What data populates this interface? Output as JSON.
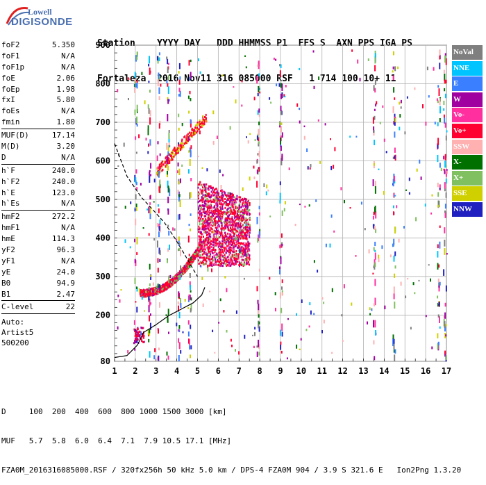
{
  "logo": {
    "line1": "Lowell",
    "line2": "DIGISONDE"
  },
  "header": {
    "labels": "Station    YYYY DAY   DDD HHMMSS P1  FFS S  AXN PPS IGA PS",
    "values": "Fortaleza  2016 Nov11 316 085000 RSF   1 714 100 10+ 11"
  },
  "params": {
    "group1": [
      [
        "foF2",
        "5.350"
      ],
      [
        "foF1",
        "N/A"
      ],
      [
        "foF1p",
        "N/A"
      ],
      [
        "foE",
        "2.06"
      ],
      [
        "foEp",
        "1.98"
      ],
      [
        "fxI",
        "5.80"
      ],
      [
        "foEs",
        "N/A"
      ],
      [
        "fmin",
        "1.80"
      ]
    ],
    "group2": [
      [
        "MUF(D)",
        "17.14"
      ],
      [
        "M(D)",
        "3.20"
      ],
      [
        "D",
        "N/A"
      ]
    ],
    "group3": [
      [
        "h`F",
        "240.0"
      ],
      [
        "h`F2",
        "240.0"
      ],
      [
        "h`E",
        "123.0"
      ],
      [
        "h`Es",
        "N/A"
      ]
    ],
    "group4": [
      [
        "hmF2",
        "272.2"
      ],
      [
        "hmF1",
        "N/A"
      ],
      [
        "hmE",
        "114.3"
      ],
      [
        "yF2",
        "96.3"
      ],
      [
        "yF1",
        "N/A"
      ],
      [
        "yE",
        "24.0"
      ],
      [
        "B0",
        "94.9"
      ],
      [
        "B1",
        "2.47"
      ]
    ],
    "group5": [
      [
        "C-level",
        "22"
      ]
    ],
    "auto": [
      "Auto:",
      "Artist5",
      "500200"
    ]
  },
  "legend": [
    {
      "label": "NoVal",
      "color": "#7f7f7f"
    },
    {
      "label": "NNE",
      "color": "#00c4ff"
    },
    {
      "label": "E",
      "color": "#3a7fff"
    },
    {
      "label": "W",
      "color": "#a000a0"
    },
    {
      "label": "Vo-",
      "color": "#ff2fa0"
    },
    {
      "label": "Vo+",
      "color": "#ff0030"
    },
    {
      "label": "SSW",
      "color": "#ffb0b0"
    },
    {
      "label": "X-",
      "color": "#007000"
    },
    {
      "label": "X+",
      "color": "#80c060"
    },
    {
      "label": "SSE",
      "color": "#d0d000"
    },
    {
      "label": "NNW",
      "color": "#2020c0"
    }
  ],
  "chart_data": {
    "type": "scatter",
    "xlim": [
      1,
      17
    ],
    "ylim": [
      80,
      900
    ],
    "x_ticks": [
      1,
      2,
      3,
      4,
      5,
      6,
      7,
      8,
      9,
      10,
      11,
      12,
      13,
      14,
      15,
      16,
      17
    ],
    "y_ticks": [
      80,
      200,
      300,
      400,
      500,
      600,
      700,
      800,
      900
    ],
    "grid": true,
    "series": [
      {
        "name": "",
        "style": "dashed",
        "points": [
          [
            1.0,
            645
          ],
          [
            1.6,
            560
          ],
          [
            2.3,
            505
          ],
          [
            2.9,
            470
          ],
          [
            3.4,
            440
          ],
          [
            3.9,
            400
          ],
          [
            4.4,
            355
          ],
          [
            4.8,
            318
          ],
          [
            5.0,
            300
          ]
        ]
      },
      {
        "name": "",
        "style": "solid",
        "points": [
          [
            1.0,
            90
          ],
          [
            1.6,
            95
          ],
          [
            2.1,
            122
          ],
          [
            2.4,
            155
          ],
          [
            3.0,
            175
          ],
          [
            3.6,
            198
          ],
          [
            4.2,
            215
          ],
          [
            4.8,
            232
          ],
          [
            5.2,
            252
          ],
          [
            5.35,
            272
          ]
        ]
      }
    ]
  },
  "footer": {
    "line1": "D     100  200  400  600  800 1000 1500 3000 [km]",
    "line2": "MUF   5.7  5.8  6.0  6.4  7.1  7.9 10.5 17.1 [MHz]",
    "line3": "FZA0M_2016316085000.RSF / 320fx256h 50 kHz 5.0 km / DPS-4 FZA0M 904 / 3.9 S 321.6 E   Ion2Png 1.3.20"
  }
}
